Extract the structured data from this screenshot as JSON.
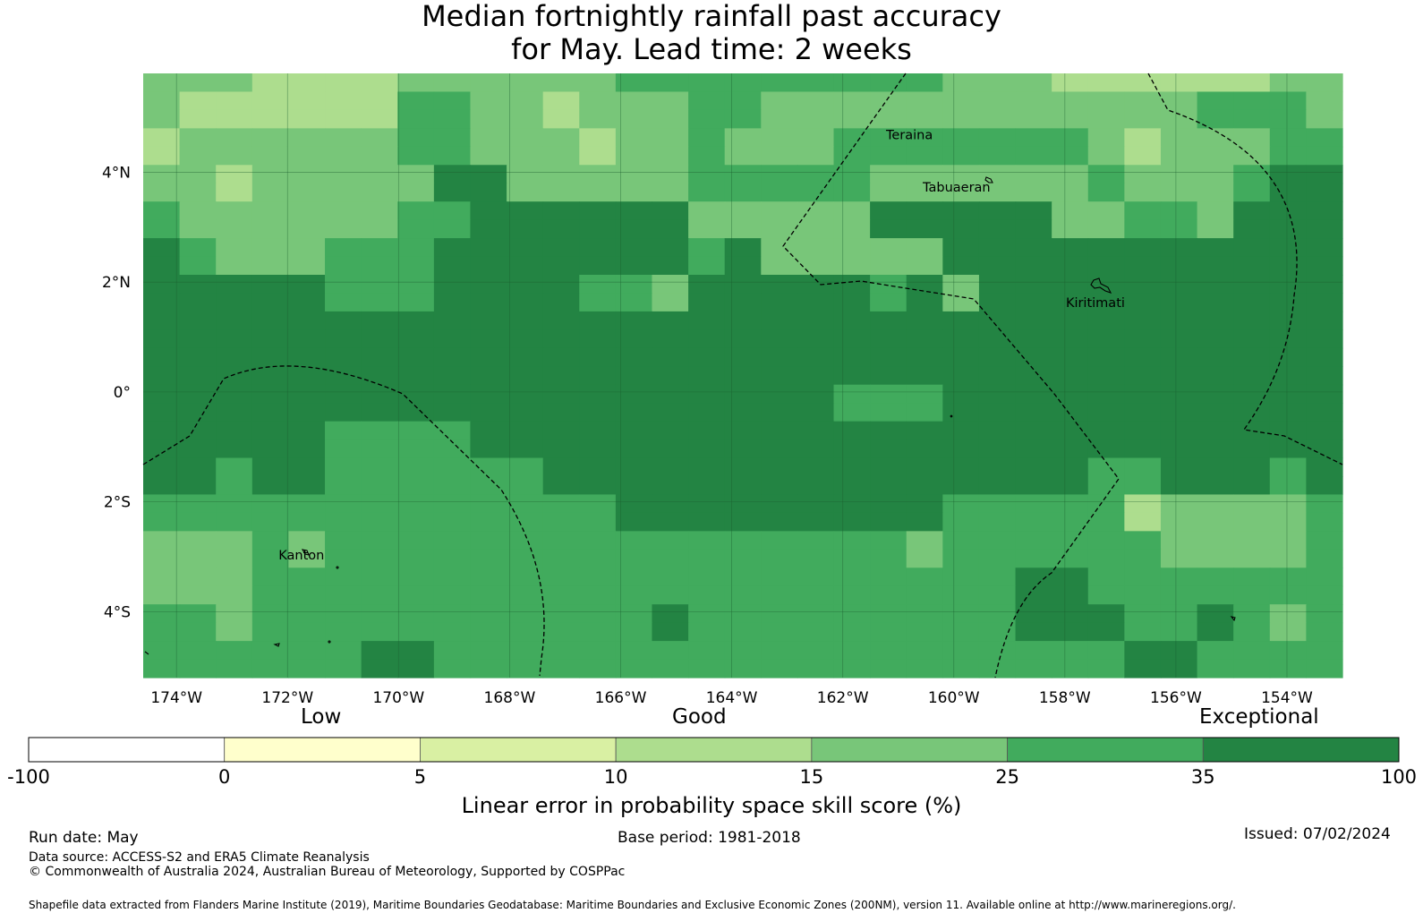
{
  "title": {
    "line1": "Median fortnightly rainfall past accuracy",
    "line2": "for May. Lead time: 2 weeks"
  },
  "map": {
    "lon_range": [
      -174.6,
      -153.0
    ],
    "lat_range": [
      -5.2,
      5.8
    ],
    "lon_ticks": [
      {
        "value": -174,
        "label": "174°W"
      },
      {
        "value": -172,
        "label": "172°W"
      },
      {
        "value": -170,
        "label": "170°W"
      },
      {
        "value": -168,
        "label": "168°W"
      },
      {
        "value": -166,
        "label": "166°W"
      },
      {
        "value": -164,
        "label": "164°W"
      },
      {
        "value": -162,
        "label": "162°W"
      },
      {
        "value": -160,
        "label": "160°W"
      },
      {
        "value": -158,
        "label": "158°W"
      },
      {
        "value": -156,
        "label": "156°W"
      },
      {
        "value": -154,
        "label": "154°W"
      }
    ],
    "lat_ticks": [
      {
        "value": 4,
        "label": "4°N"
      },
      {
        "value": 2,
        "label": "2°N"
      },
      {
        "value": 0,
        "label": "0°"
      },
      {
        "value": -2,
        "label": "2°S"
      },
      {
        "value": -4,
        "label": "4°S"
      }
    ],
    "places": [
      {
        "name": "Teraina",
        "lon": -160.8,
        "lat": 4.6
      },
      {
        "name": "Tabuaeran",
        "lon": -159.95,
        "lat": 3.65
      },
      {
        "name": "Kiritimati",
        "lon": -157.45,
        "lat": 1.55
      },
      {
        "name": "Kanton",
        "lon": -171.75,
        "lat": -3.05
      }
    ],
    "grid_note": "skill category index per 0.8° cell, rows from north to south",
    "grid_rows": [
      "444333344444455555555544433333344",
      "433333355443444554444444444445554",
      "433333355443444554444444444445554",
      "344444455444344544455555554344455",
      "344444455444344544455555554344455",
      "443444446644444555554444445444566",
      "443444446644444555554444445444566",
      "544444455666666444446666644554666",
      "544444455666666444446666644554666",
      "654445556666666564444466666666666",
      "654445556666666564444466666666666",
      "666665556666554666665646666666666",
      "666665556666554666665646666666666",
      "666666666666666666666666666666666",
      "666666666666666666666666666666666",
      "666666666666666666666666666666666",
      "666666666666666666666666666666666",
      "666666666666666666655566666666666",
      "666666666666666666655566666666666",
      "666665555666666666666666666666666",
      "666665555666666666666666666666666",
      "665665555556666666666666665566656",
      "665665555556666666666666665566656",
      "555555555555566666666655555344445",
      "555555555555566666666655555344445",
      "444545555555555555555455555544445",
      "444545555555555555555455555544445",
      "444555555555555555555555665555555",
      "444555555555555555555555665555555",
      "554555555555556555555555666556545",
      "554555555555556555555555666556545",
      "555555665555555555555555555665555",
      "555555665555555555555555555665555"
    ]
  },
  "legend": {
    "categories": [
      {
        "label": "Low"
      },
      {
        "label": "Good"
      },
      {
        "label": "Exceptional"
      }
    ],
    "bins": [
      {
        "from": -100,
        "to": 0,
        "color": "#ffffff"
      },
      {
        "from": 0,
        "to": 5,
        "color": "#ffffcc"
      },
      {
        "from": 5,
        "to": 10,
        "color": "#d9f0a3"
      },
      {
        "from": 10,
        "to": 15,
        "color": "#addd8e"
      },
      {
        "from": 15,
        "to": 25,
        "color": "#78c679"
      },
      {
        "from": 25,
        "to": 35,
        "color": "#41ab5d"
      },
      {
        "from": 35,
        "to": 100,
        "color": "#238443"
      }
    ],
    "tick_labels": [
      "-100",
      "0",
      "5",
      "10",
      "15",
      "25",
      "35",
      "100"
    ],
    "title": "Linear error in probability space skill score (%)"
  },
  "footer": {
    "run_date": "Run date: May",
    "base_period": "Base period: 1981-2018",
    "issued": "Issued: 07/02/2024",
    "data_source": "Data source: ACCESS-S2 and ERA5 Climate Reanalysis",
    "copyright": "© Commonwealth of Australia 2024, Australian Bureau of Meteorology, Supported by COSPPac",
    "shapefile": "Shapefile data extracted from Flanders Marine Institute (2019), Maritime Boundaries Geodatabase: Maritime Boundaries and Exclusive Economic Zones (200NM), version 11. Available online at http://www.marineregions.org/."
  }
}
